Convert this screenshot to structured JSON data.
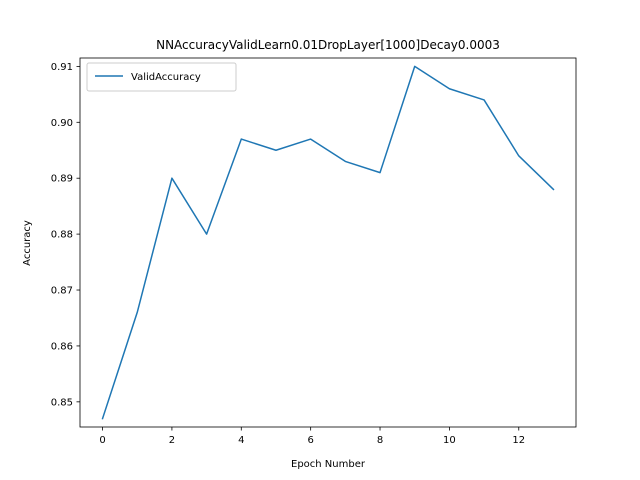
{
  "chart_data": {
    "type": "line",
    "title": "NNAccuracyValidLearn0.01DropLayer[1000]Decay0.0003",
    "xlabel": "Epoch Number",
    "ylabel": "Accuracy",
    "x": [
      0,
      1,
      2,
      3,
      4,
      5,
      6,
      7,
      8,
      9,
      10,
      11,
      12,
      13
    ],
    "series": [
      {
        "name": "ValidAccuracy",
        "color": "#1f77b4",
        "values": [
          0.847,
          0.866,
          0.89,
          0.88,
          0.897,
          0.895,
          0.897,
          0.893,
          0.891,
          0.91,
          0.906,
          0.904,
          0.894,
          0.888
        ]
      }
    ],
    "xlim": [
      -0.65,
      13.65
    ],
    "ylim": [
      0.8455,
      0.9115
    ],
    "xticks": [
      0,
      2,
      4,
      6,
      8,
      10,
      12
    ],
    "xtick_labels": [
      "0",
      "2",
      "4",
      "6",
      "8",
      "10",
      "12"
    ],
    "yticks": [
      0.85,
      0.86,
      0.87,
      0.88,
      0.89,
      0.9,
      0.91
    ],
    "ytick_labels": [
      "0.85",
      "0.86",
      "0.87",
      "0.88",
      "0.89",
      "0.90",
      "0.91"
    ],
    "grid": false,
    "legend_position": "upper left"
  }
}
